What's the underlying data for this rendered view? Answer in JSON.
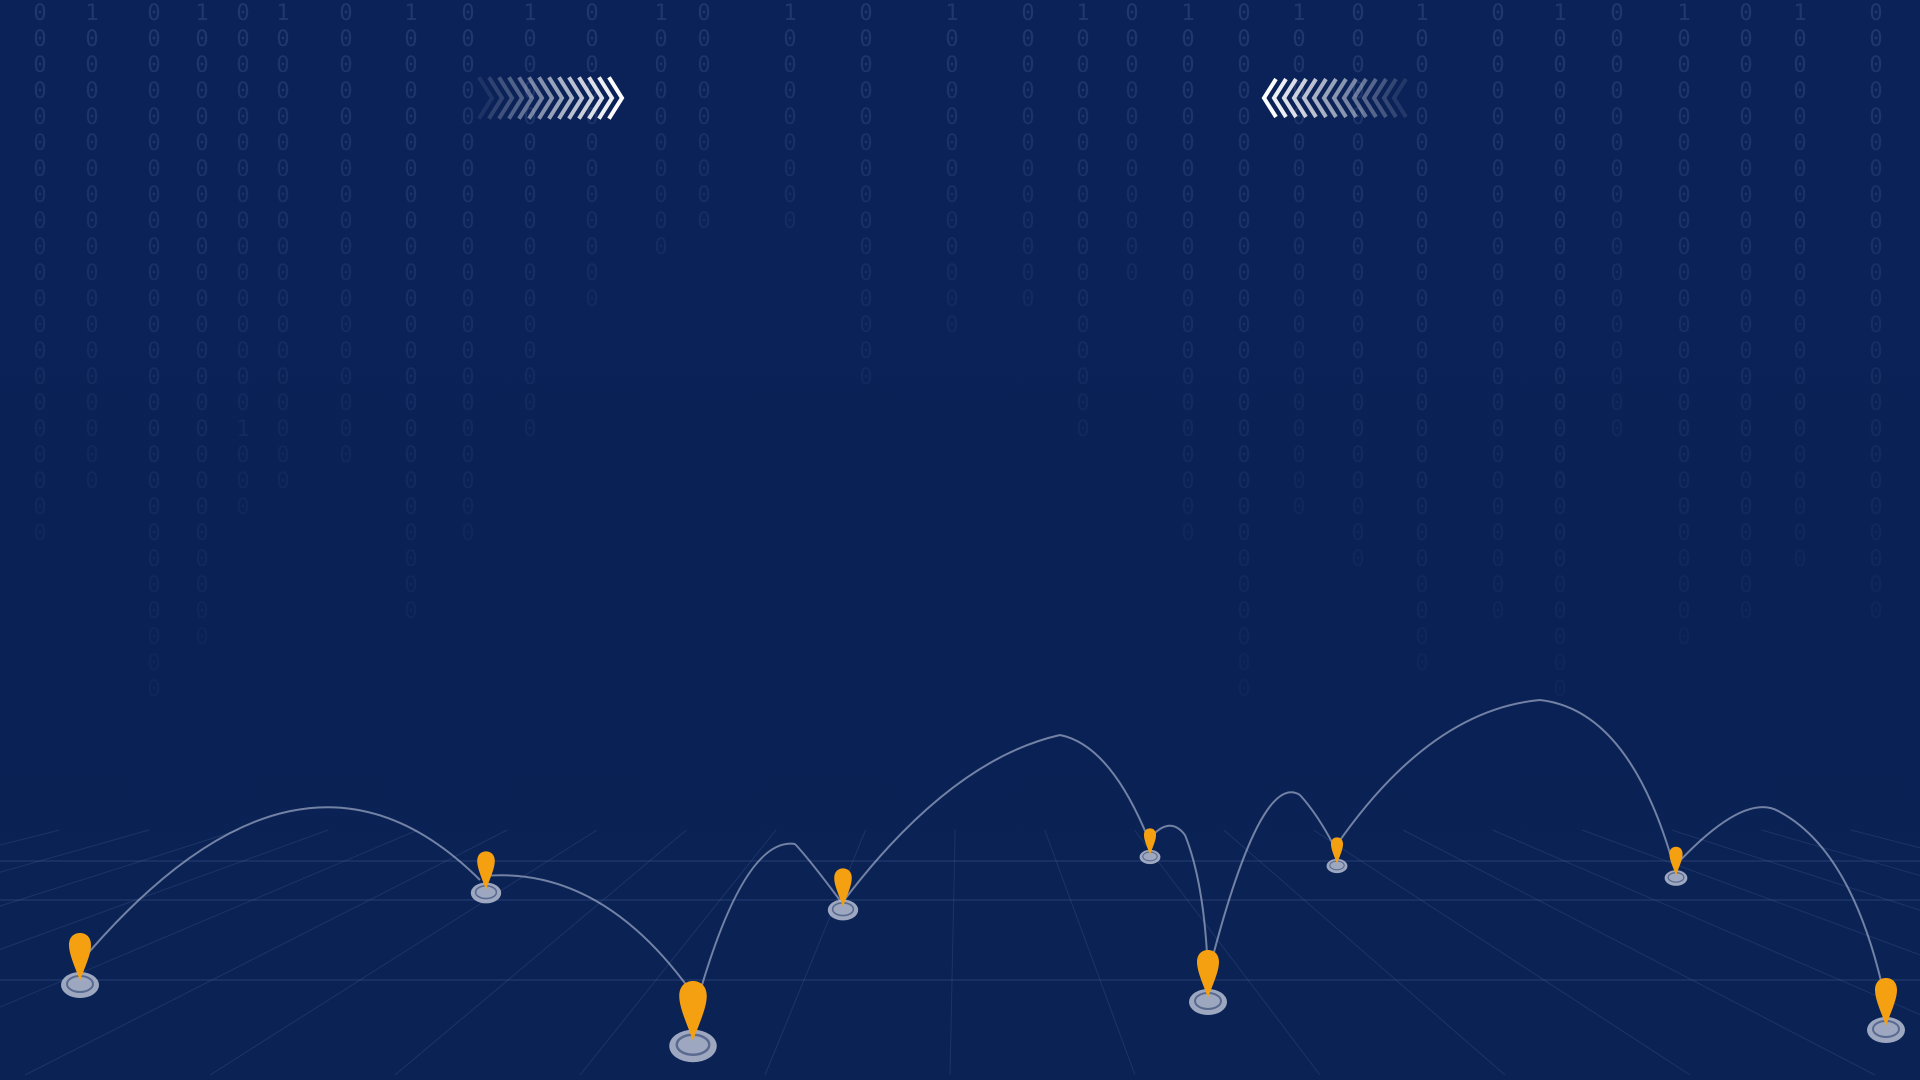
{
  "theme": {
    "background": "#0b2257",
    "digit_color": "#6f86b8",
    "grid_color": "#5a74aa",
    "arc_color": "#c9d2e6",
    "pin_color": "#f5a010",
    "base_color": "#b7bfd3",
    "chevron_color": "#ffffff"
  },
  "decorations": {
    "binary_symbols": [
      "0",
      "1"
    ],
    "left_chevron_icon": "double-chevron-right-icon",
    "right_chevron_icon": "double-chevron-left-icon",
    "pin_icon": "location-pin-icon"
  }
}
